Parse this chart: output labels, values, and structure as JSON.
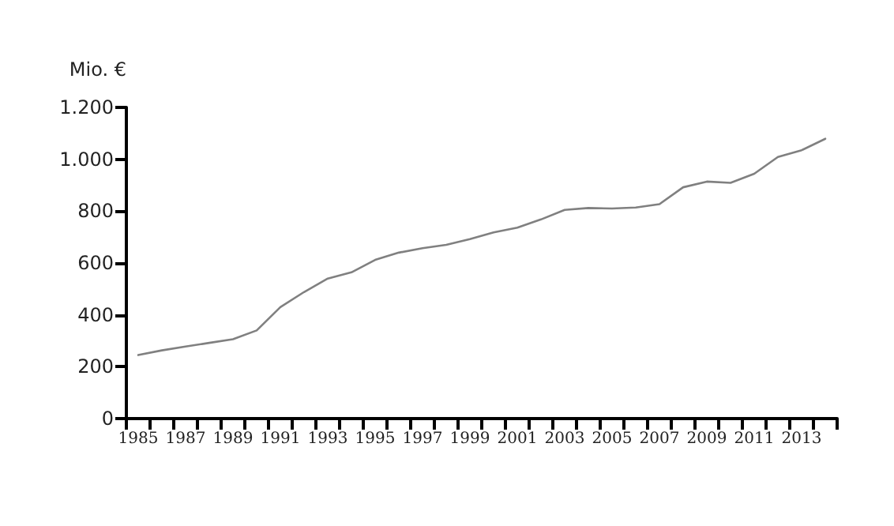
{
  "chart_data": {
    "type": "line",
    "ylabel": "Mio. €",
    "categories": [
      "1985",
      null,
      "1987",
      null,
      "1989",
      null,
      "1991",
      null,
      "1993",
      null,
      "1995",
      null,
      "1997",
      null,
      "1999",
      null,
      "2001",
      null,
      "2003",
      null,
      "2005",
      null,
      "2007",
      null,
      "2009",
      null,
      "2011",
      null,
      "2013",
      null
    ],
    "series": [
      {
        "color": "#808080",
        "values": [
          245,
          263,
          278,
          292,
          306,
          340,
          430,
          488,
          540,
          564,
          612,
          640,
          657,
          670,
          692,
          718,
          736,
          768,
          805,
          812,
          810,
          814,
          827,
          892,
          914,
          909,
          944,
          1009,
          1035,
          1079
        ]
      }
    ],
    "ylim": [
      0,
      1200
    ],
    "yticks": [
      0,
      200,
      400,
      600,
      800,
      {
        "value": 1000,
        "label": "1.000"
      },
      {
        "value": 1200,
        "label": "1.200"
      }
    ],
    "grid": false,
    "marker": "none",
    "line_style": "solid"
  }
}
